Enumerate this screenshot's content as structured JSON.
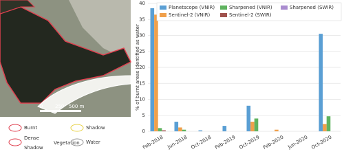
{
  "chart_data": {
    "type": "bar",
    "ylabel": "% of burnt areas identified as water",
    "categories": [
      "Feb-2018",
      "Jun-2018",
      "Oct-2018",
      "Feb-2019",
      "Oct-2019",
      "Feb-2020",
      "Jun-2020",
      "Oct-2020"
    ],
    "series": [
      {
        "name": "Planetscope (VNIR)",
        "color": "#5a9fd4",
        "values": [
          38.5,
          3,
          0.3,
          1.7,
          8,
          0,
          0,
          30.5
        ]
      },
      {
        "name": "Sentinel-2 (VNIR)",
        "color": "#f0a04b",
        "values": [
          36.5,
          1.2,
          0,
          0,
          3,
          0.5,
          0,
          2.3
        ]
      },
      {
        "name": "Sharpened (VNIR)",
        "color": "#5fb35f",
        "values": [
          1,
          0.5,
          0,
          0,
          4,
          0,
          0,
          4.7
        ]
      },
      {
        "name": "Sentinel-2 (SWIR)",
        "color": "#a0524d",
        "values": [
          0.3,
          0,
          0,
          0,
          0,
          0,
          0,
          0
        ]
      },
      {
        "name": "Sharpened (SWIR)",
        "color": "#a98bcf",
        "values": [
          0,
          0,
          0,
          0,
          0,
          0,
          0,
          0
        ]
      }
    ],
    "ylim": [
      0,
      40
    ],
    "yticks": [
      0,
      5,
      10,
      15,
      20,
      25,
      30,
      35,
      40
    ],
    "grid": true,
    "legend": "upper center"
  },
  "map": {
    "scale_labels": [
      "0",
      "250",
      "500 m"
    ],
    "legend": [
      {
        "label": "Burnt"
      },
      {
        "label_lines": [
          "Dense",
          "Vegetation",
          "Shadow"
        ]
      },
      {
        "label": "Shadow"
      },
      {
        "label": "Water"
      }
    ]
  }
}
